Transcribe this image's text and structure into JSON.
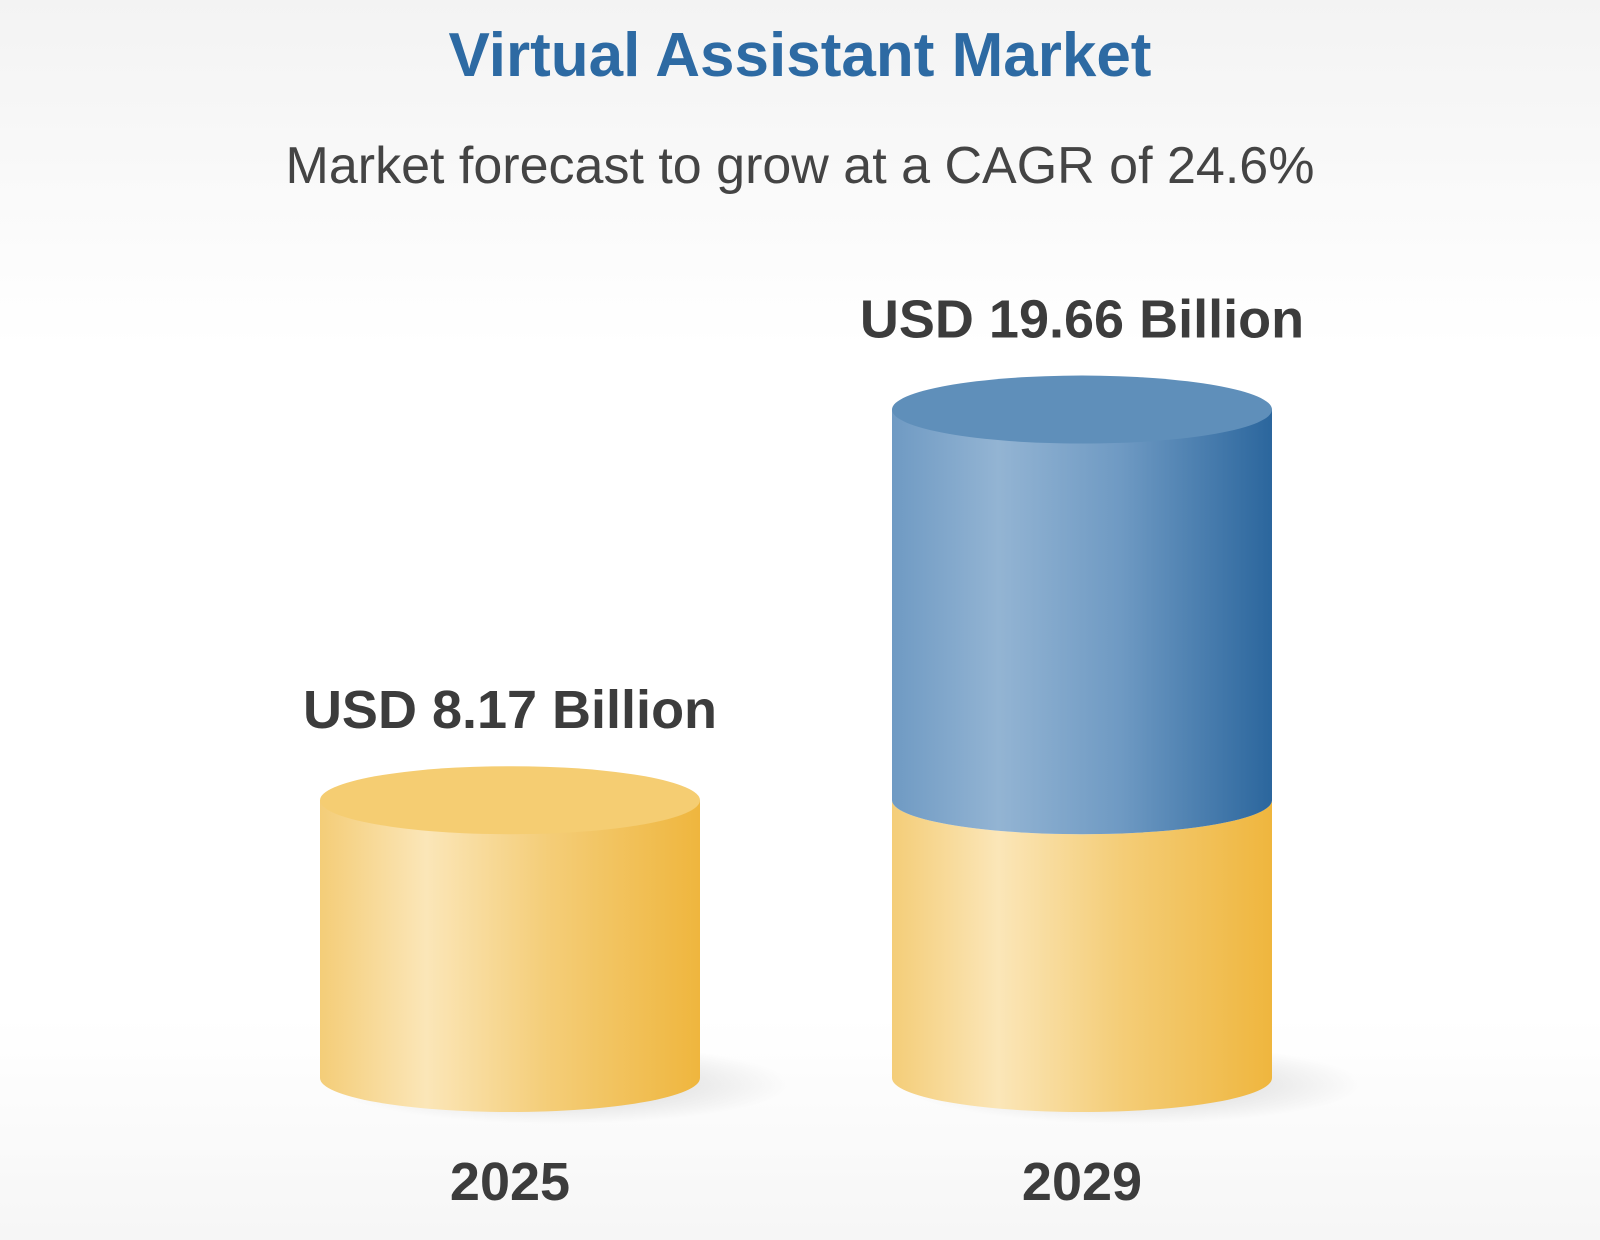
{
  "chart_data": {
    "type": "bar",
    "title": "Virtual Assistant Market",
    "subtitle": "Market forecast to grow at a CAGR of 24.6%",
    "categories": [
      "2025",
      "2029"
    ],
    "values": [
      8.17,
      19.66
    ],
    "value_labels": [
      "USD 8.17 Billion",
      "USD 19.66 Billion"
    ],
    "unit": "USD Billion",
    "xlabel": "",
    "ylabel": "",
    "ylim": [
      0,
      20
    ],
    "grid": false,
    "legend": "none",
    "bar_style": "3d-cylinder",
    "colors": {
      "gold": "#f2c14e",
      "gold_light": "#fbe6b8",
      "blue": "#3670a4",
      "blue_light": "#93b4d3",
      "title": "#2d6aa3",
      "text": "#3c3c3c"
    }
  }
}
